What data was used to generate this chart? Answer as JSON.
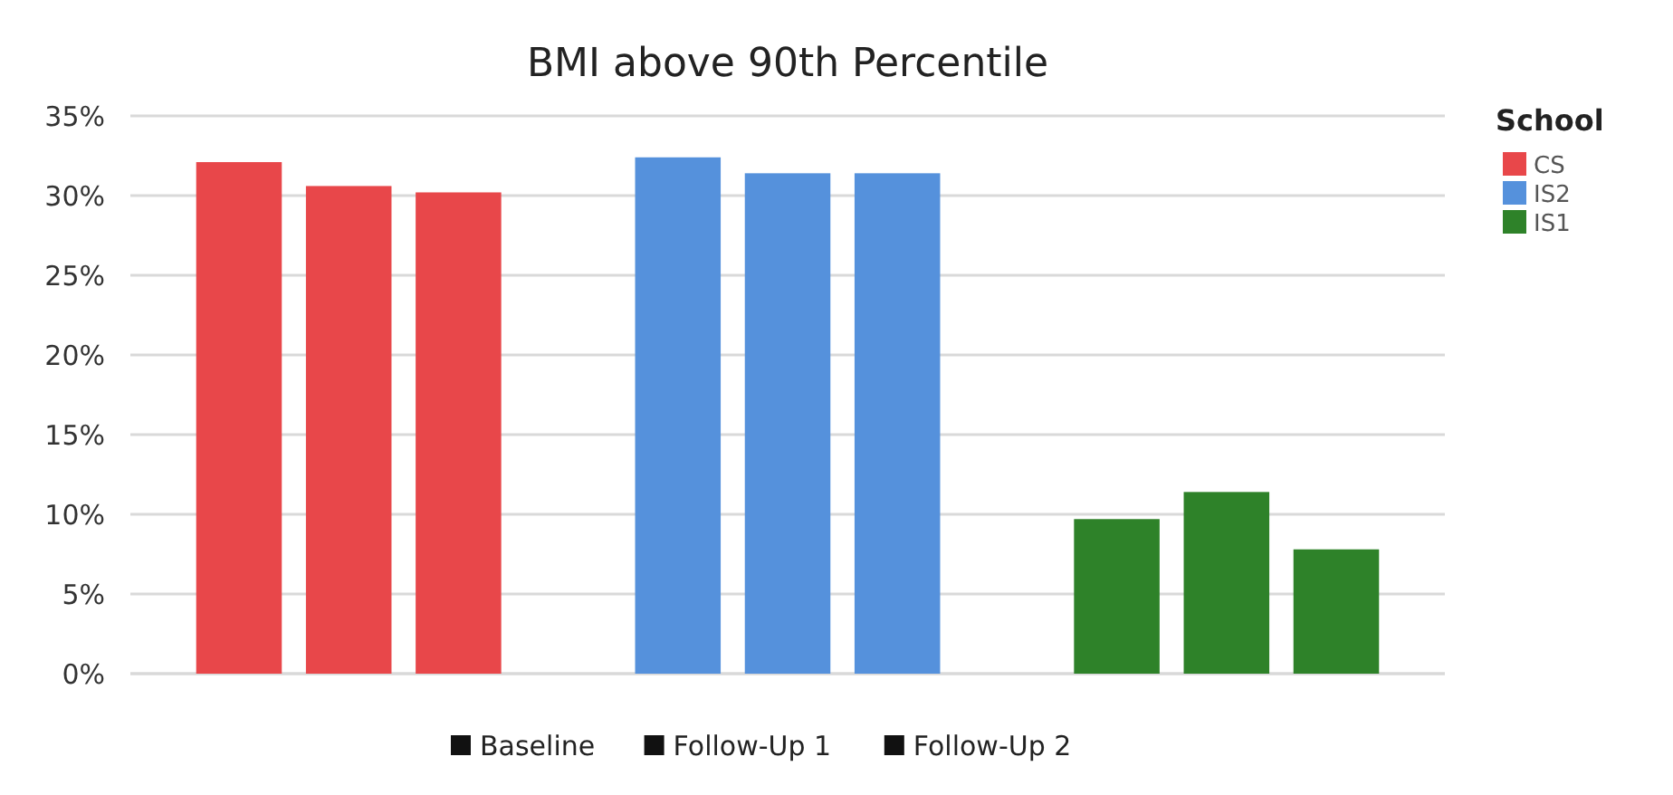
{
  "chart_data": {
    "type": "bar",
    "title": "BMI above 90th Percentile",
    "legend_title": "School",
    "categories": [
      null,
      null,
      null,
      null,
      null,
      null,
      null,
      null,
      null,
      null,
      null
    ],
    "series": [
      {
        "name": "CS",
        "color": "#e8474a",
        "values": [
          32.1,
          30.6,
          30.2,
          null,
          null,
          null,
          null,
          null,
          null,
          null,
          null
        ]
      },
      {
        "name": "IS2",
        "color": "#5591dc",
        "values": [
          null,
          null,
          null,
          null,
          32.4,
          31.4,
          31.4,
          null,
          null,
          null,
          null
        ]
      },
      {
        "name": "IS1",
        "color": "#2e8229",
        "values": [
          null,
          null,
          null,
          null,
          null,
          null,
          null,
          null,
          9.7,
          11.4,
          7.8
        ]
      }
    ],
    "ylim": [
      0,
      35
    ],
    "yticks": [
      {
        "value": 0,
        "label": "0%"
      },
      {
        "value": 5,
        "label": "5%"
      },
      {
        "value": 10,
        "label": "10%"
      },
      {
        "value": 15,
        "label": "15%"
      },
      {
        "value": 20,
        "label": "20%"
      },
      {
        "value": 25,
        "label": "25%"
      },
      {
        "value": 30,
        "label": "30%"
      },
      {
        "value": 35,
        "label": "35%"
      }
    ],
    "annotations": [
      "Baseline",
      "Follow-Up 1",
      "Follow-Up 2"
    ],
    "grid": "y",
    "legend": "right",
    "tick_labels": "y"
  }
}
